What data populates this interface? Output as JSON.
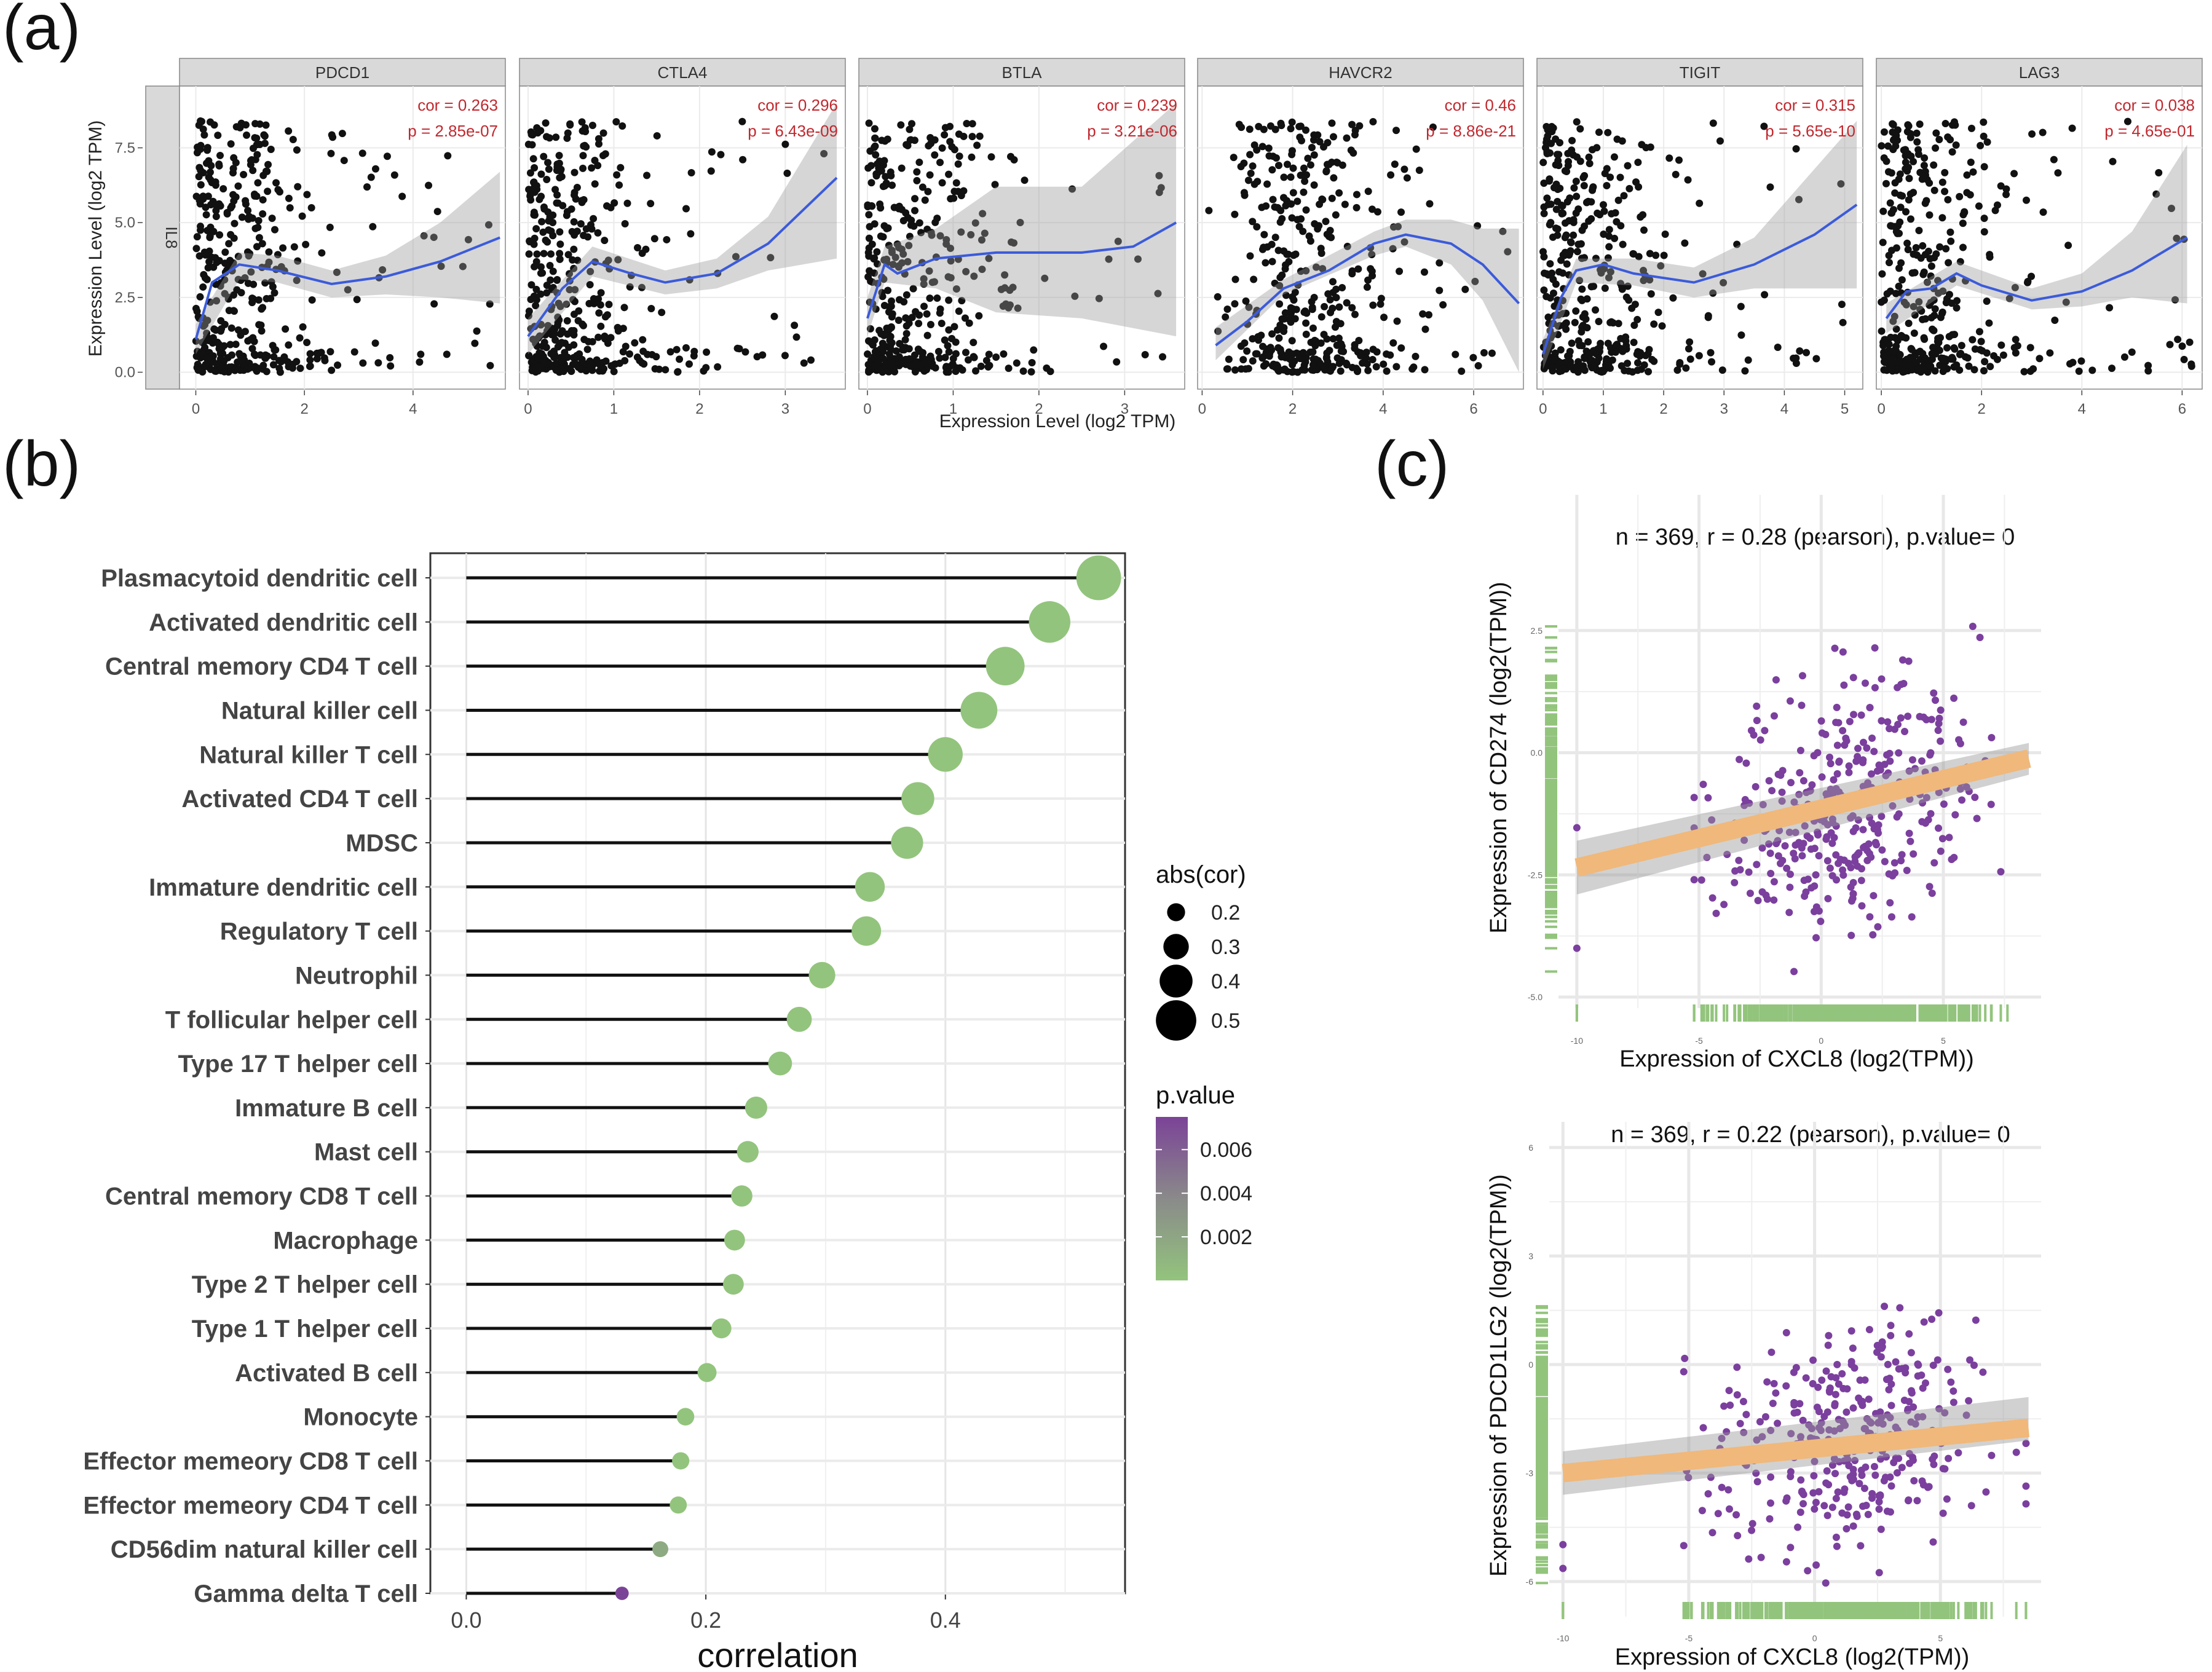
{
  "panels": {
    "a_label": "(a)",
    "b_label": "(b)",
    "c_label": "(c)"
  },
  "chart_data": [
    {
      "id": "a",
      "type": "scatter",
      "title": "",
      "row_strip": "IL8",
      "xlabel": "Expression Level (log2 TPM)",
      "ylabel": "Expression Level (log2 TPM)",
      "ylim": [
        -0.4,
        9.4
      ],
      "yticks": [
        "0.0",
        "2.5",
        "5.0",
        "7.5"
      ],
      "ytick_values": [
        0,
        2.5,
        5.0,
        7.5
      ],
      "smooth_color": "#3b5bdb",
      "annotation_color": "#c0282e",
      "facets": [
        {
          "gene": "PDCD1",
          "cor": "cor = 0.263",
          "p": "p = 2.85e-07",
          "xlim": [
            -0.3,
            5.7
          ],
          "xticks": [
            0,
            2,
            4
          ],
          "smooth": [
            [
              0,
              1.1
            ],
            [
              0.3,
              3.0
            ],
            [
              0.8,
              3.6
            ],
            [
              1.5,
              3.4
            ],
            [
              2.5,
              2.95
            ],
            [
              3.5,
              3.2
            ],
            [
              4.5,
              3.7
            ],
            [
              5.6,
              4.5
            ]
          ],
          "band": [
            [
              0,
              0.6,
              1.6
            ],
            [
              0.8,
              3.1,
              4.0
            ],
            [
              1.5,
              3.0,
              3.9
            ],
            [
              2.5,
              2.5,
              3.4
            ],
            [
              3.5,
              2.6,
              3.9
            ],
            [
              4.5,
              2.5,
              5.0
            ],
            [
              5.6,
              2.3,
              6.7
            ]
          ]
        },
        {
          "gene": "CTLA4",
          "cor": "cor = 0.296",
          "p": "p = 6.43e-09",
          "xlim": [
            -0.1,
            3.7
          ],
          "xticks": [
            0,
            1,
            2,
            3
          ],
          "smooth": [
            [
              0,
              1.2
            ],
            [
              0.4,
              2.8
            ],
            [
              0.75,
              3.7
            ],
            [
              1.2,
              3.3
            ],
            [
              1.6,
              3.0
            ],
            [
              2.2,
              3.3
            ],
            [
              2.8,
              4.3
            ],
            [
              3.6,
              6.5
            ]
          ],
          "band": [
            [
              0,
              0.6,
              1.8
            ],
            [
              0.75,
              3.2,
              4.2
            ],
            [
              1.6,
              2.6,
              3.4
            ],
            [
              2.2,
              2.8,
              3.8
            ],
            [
              2.8,
              3.4,
              5.2
            ],
            [
              3.6,
              3.8,
              9.0
            ]
          ]
        },
        {
          "gene": "BTLA",
          "cor": "cor = 0.239",
          "p": "p = 3.21e-06",
          "xlim": [
            -0.1,
            3.7
          ],
          "xticks": [
            0,
            1,
            2,
            3
          ],
          "smooth": [
            [
              0,
              1.8
            ],
            [
              0.2,
              3.6
            ],
            [
              0.35,
              3.3
            ],
            [
              0.8,
              3.8
            ],
            [
              1.5,
              4.0
            ],
            [
              2.5,
              4.0
            ],
            [
              3.1,
              4.2
            ],
            [
              3.6,
              5.0
            ]
          ],
          "band": [
            [
              0,
              1.2,
              2.5
            ],
            [
              0.2,
              3.0,
              4.2
            ],
            [
              0.8,
              2.8,
              4.8
            ],
            [
              1.5,
              2.0,
              6.2
            ],
            [
              2.5,
              1.8,
              6.2
            ],
            [
              3.6,
              1.2,
              9.0
            ]
          ]
        },
        {
          "gene": "HAVCR2",
          "cor": "cor = 0.46",
          "p": "p = 8.86e-21",
          "xlim": [
            -0.1,
            7.1
          ],
          "xticks": [
            0,
            2,
            4,
            6
          ],
          "smooth": [
            [
              0.3,
              0.9
            ],
            [
              1.0,
              1.7
            ],
            [
              1.8,
              2.8
            ],
            [
              2.8,
              3.4
            ],
            [
              3.8,
              4.3
            ],
            [
              4.5,
              4.6
            ],
            [
              5.5,
              4.3
            ],
            [
              6.2,
              3.6
            ],
            [
              7.0,
              2.3
            ]
          ],
          "band": [
            [
              0.3,
              0.4,
              1.5
            ],
            [
              1.8,
              2.6,
              3.1
            ],
            [
              3.8,
              3.9,
              4.7
            ],
            [
              4.5,
              4.2,
              5.1
            ],
            [
              5.5,
              3.6,
              5.1
            ],
            [
              6.2,
              2.4,
              4.8
            ],
            [
              7.0,
              0.0,
              4.8
            ]
          ]
        },
        {
          "gene": "TIGIT",
          "cor": "cor = 0.315",
          "p": "p = 5.65e-10",
          "xlim": [
            -0.1,
            5.3
          ],
          "xticks": [
            0,
            1,
            2,
            3,
            4,
            5
          ],
          "smooth": [
            [
              0,
              0.6
            ],
            [
              0.3,
              2.5
            ],
            [
              0.55,
              3.4
            ],
            [
              1.0,
              3.6
            ],
            [
              1.5,
              3.3
            ],
            [
              2.5,
              3.0
            ],
            [
              3.5,
              3.6
            ],
            [
              4.5,
              4.6
            ],
            [
              5.2,
              5.6
            ]
          ],
          "band": [
            [
              0,
              0.1,
              1.1
            ],
            [
              0.55,
              3.0,
              3.8
            ],
            [
              1.5,
              2.9,
              3.8
            ],
            [
              2.5,
              2.5,
              3.5
            ],
            [
              3.5,
              2.8,
              4.5
            ],
            [
              5.2,
              2.8,
              8.4
            ]
          ]
        },
        {
          "gene": "LAG3",
          "cor": "cor = 0.038",
          "p": "p = 4.65e-01",
          "xlim": [
            -0.1,
            6.4
          ],
          "xticks": [
            0,
            2,
            4,
            6
          ],
          "smooth": [
            [
              0.1,
              1.8
            ],
            [
              0.5,
              2.7
            ],
            [
              1.0,
              2.8
            ],
            [
              1.5,
              3.3
            ],
            [
              2.0,
              2.9
            ],
            [
              3.0,
              2.4
            ],
            [
              4.0,
              2.7
            ],
            [
              5.0,
              3.4
            ],
            [
              6.1,
              4.5
            ]
          ],
          "band": [
            [
              0.1,
              1.3,
              2.3
            ],
            [
              1.5,
              2.9,
              3.7
            ],
            [
              3.0,
              2.1,
              2.8
            ],
            [
              4.0,
              2.2,
              3.3
            ],
            [
              5.0,
              2.5,
              4.7
            ],
            [
              6.1,
              2.3,
              7.6
            ]
          ]
        }
      ]
    },
    {
      "id": "b",
      "type": "lollipop",
      "xlabel": "correlation",
      "ylabel": "",
      "xlim": [
        -0.03,
        0.55
      ],
      "xticks": [
        "0.0",
        "0.2",
        "0.4"
      ],
      "xtick_values": [
        0.0,
        0.2,
        0.4
      ],
      "grid": true,
      "categories": [
        "Plasmacytoid dendritic cell",
        "Activated dendritic cell",
        "Central memory CD4 T cell",
        "Natural killer cell",
        "Natural killer T cell",
        "Activated CD4 T cell",
        "MDSC",
        "Immature dendritic cell",
        "Regulatory T cell",
        "Neutrophil",
        "T follicular helper cell",
        "Type 17 T helper cell",
        "Immature  B cell",
        "Mast cell",
        "Central memory CD8 T cell",
        "Macrophage",
        "Type 2 T helper cell",
        "Type 1 T helper cell",
        "Activated B cell",
        "Monocyte",
        "Effector memeory CD8 T cell",
        "Effector memeory CD4 T cell",
        "CD56dim natural killer cell",
        "Gamma delta T cell"
      ],
      "values": [
        0.528,
        0.487,
        0.45,
        0.428,
        0.4,
        0.377,
        0.368,
        0.337,
        0.334,
        0.297,
        0.278,
        0.262,
        0.242,
        0.235,
        0.23,
        0.224,
        0.223,
        0.213,
        0.201,
        0.183,
        0.179,
        0.177,
        0.162,
        0.13
      ],
      "pvalues": [
        0.0,
        0.0,
        0.0,
        0.0,
        0.0,
        0.0,
        0.0,
        0.0,
        0.0,
        0.0,
        0.0,
        0.0,
        0.0,
        0.0,
        0.0,
        0.0,
        0.0,
        0.0,
        0.0,
        0.0,
        0.0,
        0.0,
        0.0015,
        0.0075
      ],
      "size_legend": {
        "title": "abs(cor)",
        "labels": [
          "0.2",
          "0.3",
          "0.4",
          "0.5"
        ],
        "values": [
          0.2,
          0.3,
          0.4,
          0.5
        ]
      },
      "color_legend": {
        "title": "p.value",
        "labels": [
          "0.006",
          "0.004",
          "0.002"
        ],
        "values": [
          0.006,
          0.004,
          0.002
        ],
        "range": [
          0,
          0.0075
        ],
        "low_color": "#93c47d",
        "high_color": "#7b4397"
      }
    },
    {
      "id": "c1",
      "type": "scatter",
      "title": "n = 369, r = 0.28 (pearson), p.value= 0",
      "xlabel": "Expression of CXCL8 (log2(TPM))",
      "ylabel": "Expression of CD274  (log2(TPM))",
      "xlim": [
        -10.5,
        9
      ],
      "ylim": [
        -5.1,
        4.9
      ],
      "xticks": [
        "-10",
        "-5",
        "0",
        "5"
      ],
      "xtick_values": [
        -10,
        -5,
        0,
        5
      ],
      "yticks": [
        "-5.0",
        "-2.5",
        "0.0",
        "2.5"
      ],
      "ytick_values": [
        -5.0,
        -2.5,
        0.0,
        2.5
      ],
      "point_color": "#7b3f9e",
      "fit_color": "#f0b87a",
      "rug_color": "#93c47d",
      "fit": {
        "x": [
          -10,
          8.5
        ],
        "y": [
          -2.35,
          -0.12
        ],
        "band_lo": [
          -2.9,
          -0.45
        ],
        "band_hi": [
          -1.8,
          0.2
        ]
      }
    },
    {
      "id": "c2",
      "type": "scatter",
      "title": "n = 369, r = 0.22 (pearson), p.value= 0",
      "xlabel": "Expression of CXCL8 (log2(TPM))",
      "ylabel": "Expression of PDCD1LG2 (log2(TPM))",
      "xlim": [
        -10.3,
        9
      ],
      "ylim": [
        -6.8,
        6.2
      ],
      "xticks": [
        "-10",
        "-5",
        "0",
        "5"
      ],
      "xtick_values": [
        -10,
        -5,
        0,
        5
      ],
      "yticks": [
        "-6",
        "-3",
        "0",
        "3",
        "6"
      ],
      "ytick_values": [
        -6,
        -3,
        0,
        3,
        6
      ],
      "point_color": "#7b3f9e",
      "fit_color": "#f0b87a",
      "rug_color": "#93c47d",
      "fit": {
        "x": [
          -10,
          8.5
        ],
        "y": [
          -3.0,
          -1.75
        ],
        "band_lo": [
          -3.6,
          -2.1
        ],
        "band_hi": [
          -2.4,
          -0.9
        ]
      }
    }
  ]
}
